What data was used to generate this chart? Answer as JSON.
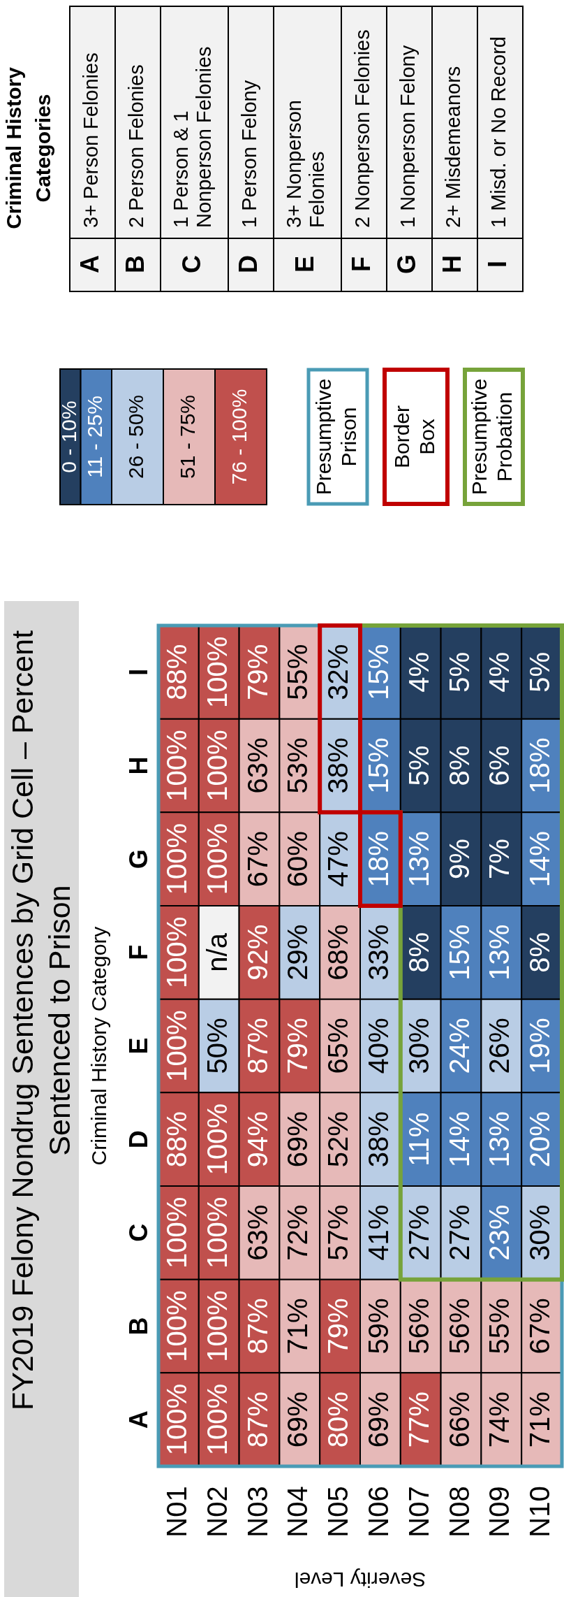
{
  "chart_data": {
    "type": "heatmap",
    "title": "FY2019 Felony Nondrug Sentences by Grid Cell – Percent Sentenced to Prison",
    "xlabel": "Severity Level",
    "ylabel": "Criminal History Category",
    "categories": [
      "N01",
      "N02",
      "N03",
      "N04",
      "N05",
      "N06",
      "N07",
      "N08",
      "N09",
      "N10"
    ],
    "y_categories": [
      "I",
      "H",
      "G",
      "F",
      "E",
      "D",
      "C",
      "B",
      "A"
    ],
    "cells": [
      [
        88,
        100,
        79,
        55,
        32,
        15,
        4,
        5,
        4,
        5
      ],
      [
        100,
        100,
        63,
        53,
        38,
        15,
        5,
        8,
        6,
        18
      ],
      [
        100,
        100,
        67,
        60,
        47,
        18,
        13,
        9,
        7,
        14
      ],
      [
        100,
        null,
        92,
        29,
        68,
        33,
        8,
        15,
        13,
        8
      ],
      [
        100,
        50,
        87,
        79,
        65,
        40,
        30,
        24,
        26,
        19
      ],
      [
        88,
        100,
        94,
        69,
        52,
        38,
        11,
        14,
        13,
        20
      ],
      [
        100,
        100,
        63,
        72,
        57,
        41,
        27,
        27,
        23,
        30
      ],
      [
        100,
        100,
        87,
        71,
        79,
        59,
        56,
        56,
        55,
        67
      ],
      [
        100,
        100,
        87,
        69,
        80,
        69,
        77,
        66,
        74,
        71
      ]
    ],
    "cell_labels": [
      [
        "88%",
        "100%",
        "79%",
        "55%",
        "32%",
        "15%",
        "4%",
        "5%",
        "4%",
        "5%"
      ],
      [
        "100%",
        "100%",
        "63%",
        "53%",
        "38%",
        "15%",
        "5%",
        "8%",
        "6%",
        "18%"
      ],
      [
        "100%",
        "100%",
        "67%",
        "60%",
        "47%",
        "18%",
        "13%",
        "9%",
        "7%",
        "14%"
      ],
      [
        "100%",
        "n/a",
        "92%",
        "29%",
        "68%",
        "33%",
        "8%",
        "15%",
        "13%",
        "8%"
      ],
      [
        "100%",
        "50%",
        "87%",
        "79%",
        "65%",
        "40%",
        "30%",
        "24%",
        "26%",
        "19%"
      ],
      [
        "88%",
        "100%",
        "94%",
        "69%",
        "52%",
        "38%",
        "11%",
        "14%",
        "13%",
        "20%"
      ],
      [
        "100%",
        "100%",
        "63%",
        "72%",
        "57%",
        "41%",
        "27%",
        "27%",
        "23%",
        "30%"
      ],
      [
        "100%",
        "100%",
        "87%",
        "71%",
        "79%",
        "59%",
        "56%",
        "56%",
        "55%",
        "67%"
      ],
      [
        "100%",
        "100%",
        "87%",
        "69%",
        "80%",
        "69%",
        "77%",
        "66%",
        "74%",
        "71%"
      ]
    ],
    "clim": [
      0,
      100
    ],
    "cticks": [
      {
        "value": 0,
        "label": null
      },
      {
        "value": 5,
        "label": "0 - 10%"
      },
      {
        "value": 10,
        "label": null
      },
      {
        "value": 17.5,
        "label": "11 - 25%"
      },
      {
        "value": 25,
        "label": null
      },
      {
        "value": 37.5,
        "label": "26 - 50%"
      },
      {
        "value": 50,
        "label": null
      },
      {
        "value": 62.5,
        "label": "51 - 75%"
      },
      {
        "value": 75,
        "label": null
      },
      {
        "value": 87.5,
        "label": "76 - 100%"
      },
      {
        "value": 100,
        "label": null
      }
    ],
    "colors": [
      "#243f60",
      "#4f81bd",
      "#b9cde5",
      "#e6b9b8",
      "#c0504d"
    ],
    "annotations": [
      "Criminal History Categories",
      "3+ Person Felonies",
      "2 Person Felonies",
      "1 Person & 1 Nonperson Felonies",
      "1 Person Felony",
      "3+ Nonperson Felonies",
      "2 Nonperson Felonies",
      "1 Nonperson Felony",
      "2+ Misdemeanors",
      "1 Misd. or No Record",
      "Presumptive Prison",
      "Border Box",
      "Presumptive Probation"
    ]
  }
}
